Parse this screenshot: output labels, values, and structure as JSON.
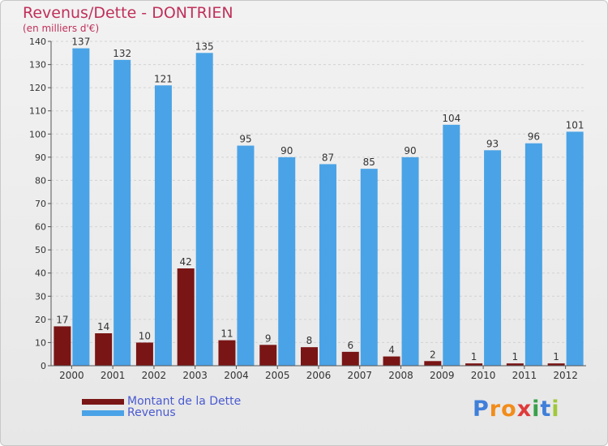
{
  "chart_data": {
    "type": "bar",
    "title": "Revenus/Dette - DONTRIEN",
    "subtitle": "(en milliers d'€)",
    "categories": [
      "2000",
      "2001",
      "2002",
      "2003",
      "2004",
      "2005",
      "2006",
      "2007",
      "2008",
      "2009",
      "2010",
      "2011",
      "2012"
    ],
    "series": [
      {
        "name": "Montant de la Dette",
        "color": "#7a1515",
        "values": [
          17,
          14,
          10,
          42,
          11,
          9,
          8,
          6,
          4,
          2,
          1,
          1,
          1
        ]
      },
      {
        "name": "Revenus",
        "color": "#4aa3e6",
        "values": [
          137,
          132,
          121,
          135,
          95,
          90,
          87,
          85,
          90,
          104,
          93,
          96,
          101
        ]
      }
    ],
    "ylim": [
      0,
      140
    ],
    "yticks": [
      0,
      10,
      20,
      30,
      40,
      50,
      60,
      70,
      80,
      90,
      100,
      110,
      120,
      130,
      140
    ],
    "grid": true,
    "legend": "bottom-left"
  },
  "brand": {
    "letters": [
      "P",
      "r",
      "o",
      "x",
      "i",
      "t",
      "i"
    ],
    "colors": [
      "#3f7fd9",
      "#f28c1a",
      "#f28c1a",
      "#e03a3a",
      "#3aa14a",
      "#3f7fd9",
      "#a0c83a"
    ]
  }
}
